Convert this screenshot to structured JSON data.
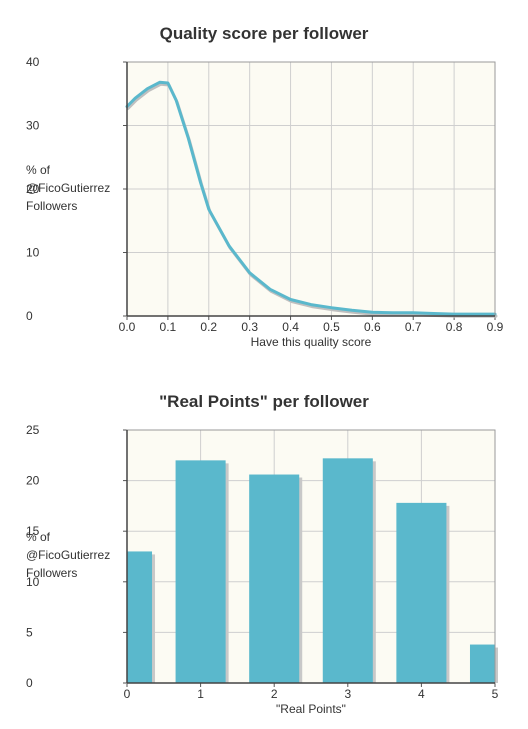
{
  "chart_data": [
    {
      "type": "area",
      "title": "Quality score per follower",
      "xlabel": "Have this quality score",
      "ylabel": "% of\n@FicoGutierrez\nFollowers",
      "xlim": [
        0,
        0.9
      ],
      "ylim": [
        0,
        40
      ],
      "x_ticks": [
        "0.0",
        "0.1",
        "0.2",
        "0.3",
        "0.4",
        "0.5",
        "0.6",
        "0.7",
        "0.8",
        "0.9"
      ],
      "y_ticks": [
        "0",
        "10",
        "20",
        "30",
        "40"
      ],
      "grid": true,
      "x": [
        0.0,
        0.02,
        0.05,
        0.08,
        0.1,
        0.12,
        0.15,
        0.18,
        0.2,
        0.25,
        0.3,
        0.35,
        0.4,
        0.45,
        0.5,
        0.55,
        0.6,
        0.65,
        0.7,
        0.75,
        0.8,
        0.85,
        0.9
      ],
      "values": [
        33.0,
        34.3,
        35.8,
        36.8,
        36.7,
        34.0,
        28.0,
        21.0,
        16.8,
        11.0,
        6.8,
        4.2,
        2.6,
        1.8,
        1.3,
        0.9,
        0.6,
        0.5,
        0.5,
        0.4,
        0.3,
        0.3,
        0.3
      ],
      "color": "#5ab8cc",
      "background": "#fcfbf3",
      "gridColor": "#cfcfcf"
    },
    {
      "type": "bar",
      "title": "\"Real Points\" per follower",
      "xlabel": "\"Real Points\"",
      "ylabel": "% of\n@FicoGutierrez\nFollowers",
      "xlim": [
        0,
        5
      ],
      "ylim": [
        0,
        25
      ],
      "x_ticks": [
        "0",
        "1",
        "2",
        "3",
        "4",
        "5"
      ],
      "y_ticks": [
        "0",
        "5",
        "10",
        "15",
        "20",
        "25"
      ],
      "grid": true,
      "categories": [
        0,
        1,
        2,
        3,
        4,
        5
      ],
      "values": [
        13.0,
        22.0,
        20.6,
        22.2,
        17.8,
        3.8
      ],
      "color": "#5ab8cc",
      "background": "#fcfbf3",
      "gridColor": "#cfcfcf"
    }
  ]
}
